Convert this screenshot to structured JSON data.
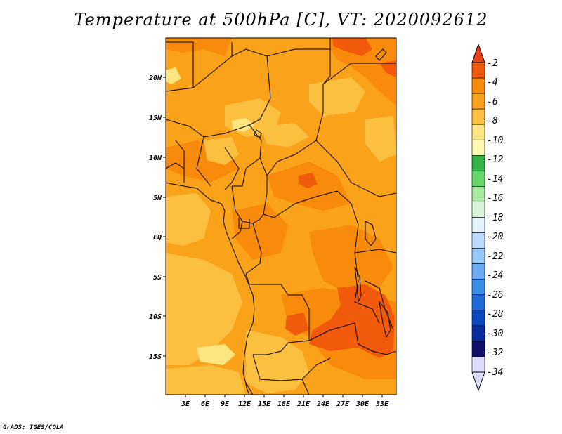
{
  "title": "Temperature at 500hPa [C], VT: 2020092612",
  "credit": "GrADS: IGES/COLA",
  "map": {
    "lat_labels": [
      "20N",
      "15N",
      "10N",
      "5N",
      "EQ",
      "5S",
      "10S",
      "15S"
    ],
    "lon_labels": [
      "3E",
      "6E",
      "9E",
      "12E",
      "15E",
      "18E",
      "21E",
      "24E",
      "27E",
      "30E",
      "33E"
    ]
  },
  "colorbar": {
    "labels": [
      "-2",
      "-4",
      "-6",
      "-8",
      "-10",
      "-12",
      "-14",
      "-16",
      "-18",
      "-20",
      "-22",
      "-24",
      "-26",
      "-28",
      "-30",
      "-32",
      "-34"
    ],
    "colors": [
      "#f05a0a",
      "#f88a0c",
      "#faa21a",
      "#fcc040",
      "#fde680",
      "#fff8b0",
      "#34b444",
      "#66d766",
      "#a8e8a0",
      "#d8f4d8",
      "#e4f2ff",
      "#bcdcff",
      "#96c8fa",
      "#6aabf5",
      "#3a8ee8",
      "#1e6ad8",
      "#0c48c0",
      "#0a2ca0",
      "#10106c",
      "#dcdcff"
    ],
    "top_arrow_color": "#e8421c",
    "bottom_arrow_color": "#dcdcff"
  }
}
